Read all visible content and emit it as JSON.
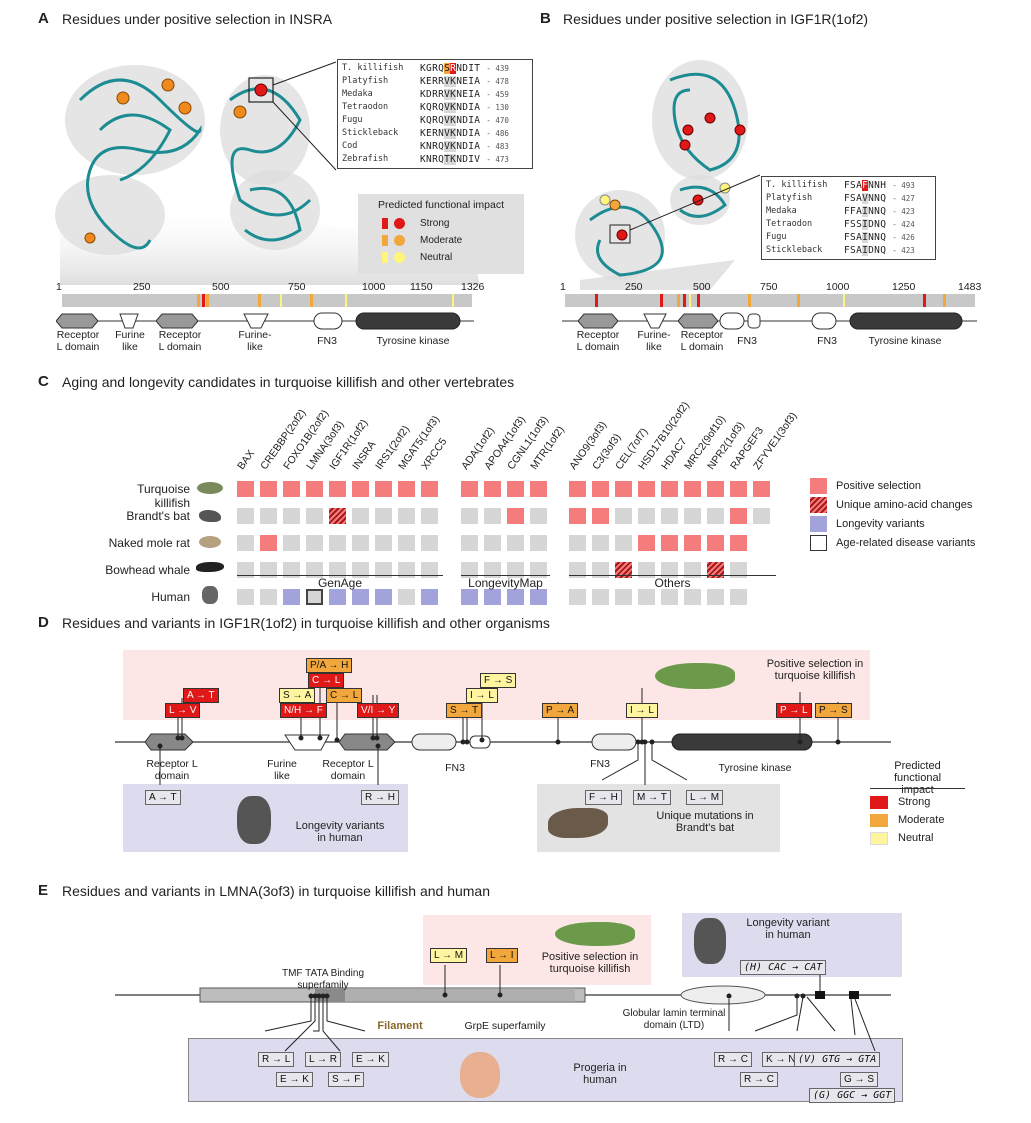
{
  "panelA": {
    "letter": "A",
    "title": "Residues under positive selection in INSRA",
    "axis_ticks": [
      "1",
      "250",
      "500",
      "750",
      "1000",
      "1150",
      "1326"
    ],
    "domains": [
      "Receptor\nL domain",
      "Furine\nlike",
      "Receptor\nL domain",
      "Furine-\nlike",
      "FN3",
      "Tyrosine kinase"
    ],
    "alignment": [
      {
        "species": "T. killifish",
        "seq": "KGRQSRNDIT",
        "num": "439"
      },
      {
        "species": "Platyfish",
        "seq": "KERRVKNEIA",
        "num": "478"
      },
      {
        "species": "Medaka",
        "seq": "KDRRVKNEIA",
        "num": "459"
      },
      {
        "species": "Tetraodon",
        "seq": "KQRQVKNDIA",
        "num": "130"
      },
      {
        "species": "Fugu",
        "seq": "KQRQVKNDIA",
        "num": "470"
      },
      {
        "species": "Stickleback",
        "seq": "KERNVKNDIA",
        "num": "486"
      },
      {
        "species": "Cod",
        "seq": "KNRQVKNDIA",
        "num": "483"
      },
      {
        "species": "Zebrafish",
        "seq": "KNRQTKNDIV",
        "num": "473"
      }
    ],
    "impact_legend": {
      "title": "Predicted functional impact",
      "items": [
        "Strong",
        "Moderate",
        "Neutral"
      ]
    }
  },
  "panelB": {
    "letter": "B",
    "title": "Residues under positive selection in IGF1R(1of2)",
    "axis_ticks": [
      "1",
      "250",
      "500",
      "750",
      "1000",
      "1250",
      "1483"
    ],
    "domains": [
      "Receptor\nL domain",
      "Furine-\nlike",
      "Receptor\nL domain",
      "FN3",
      "FN3",
      "Tyrosine kinase"
    ],
    "alignment": [
      {
        "species": "T. killifish",
        "seq": "FSAFNNH",
        "num": "493"
      },
      {
        "species": "Platyfish",
        "seq": "FSAVNNQ",
        "num": "427"
      },
      {
        "species": "Medaka",
        "seq": "FFAINNQ",
        "num": "423"
      },
      {
        "species": "Tetraodon",
        "seq": "FSSIDNQ",
        "num": "424"
      },
      {
        "species": "Fugu",
        "seq": "FSAINNQ",
        "num": "426"
      },
      {
        "species": "Stickleback",
        "seq": "FSAIDNQ",
        "num": "423"
      }
    ]
  },
  "panelC": {
    "letter": "C",
    "title": "Aging and longevity candidates in turquoise killifish and other vertebrates",
    "genes": [
      "BAX",
      "CREBBP(2of2)",
      "FOXO1B(2of2)",
      "LMNA(3of3)",
      "IGF1R(1of2)",
      "INSRA",
      "IRS1(2of2)",
      "MGAT5(1of3)",
      "XRCC5",
      "ADA(1of2)",
      "APOA4(1of3)",
      "CGNL1(1of3)",
      "MTR(1of2)",
      "ANO9(3of3)",
      "C3(3of3)",
      "CEL(7of7)",
      "HSD17B10(2of2)",
      "HDAC7",
      "MRC2(9of10)",
      "NPR2(1of3)",
      "RAPGEF3",
      "ZFYVE1(3of3)"
    ],
    "species": [
      "Turquoise killifish",
      "Brandt's bat",
      "Naked mole rat",
      "Bowhead whale",
      "Human"
    ],
    "grid": [
      "ppppppppp pppp ppppppppp",
      "ggggugggg ggpg ppgggggpg",
      "gpggggggg gggg gggppppp",
      "ggggggggg gggg ggugggug",
      "gglalllgl llll gggggggg"
    ],
    "groups": [
      "GenAge",
      "LongevityMap",
      "Others"
    ],
    "legend": [
      "Positive selection",
      "Unique amino-acid changes",
      "Longevity variants",
      "Age-related disease variants"
    ]
  },
  "panelD": {
    "letter": "D",
    "title": "Residues and variants in IGF1R(1of2) in turquoise killifish and other organisms",
    "selection_label": "Positive selection in\nturquoise killifish",
    "human_label": "Longevity variants\nin human",
    "bat_label": "Unique mutations in\nBrandt's bat",
    "domains": [
      "Receptor L\ndomain",
      "Furine\nlike",
      "Receptor L\ndomain",
      "FN3",
      "FN3",
      "Tyrosine kinase"
    ],
    "mutations": [
      {
        "t": "A → T",
        "k": "strong"
      },
      {
        "t": "L → V",
        "k": "strong"
      },
      {
        "t": "P/A → H",
        "k": "moderate"
      },
      {
        "t": "S → A",
        "k": "neutral"
      },
      {
        "t": "C → L",
        "k": "strong"
      },
      {
        "t": "C → L",
        "k": "moderate"
      },
      {
        "t": "N/H → F",
        "k": "strong"
      },
      {
        "t": "V/I → Y",
        "k": "strong"
      },
      {
        "t": "F → S",
        "k": "neutral"
      },
      {
        "t": "I → L",
        "k": "neutral"
      },
      {
        "t": "S → T",
        "k": "moderate"
      },
      {
        "t": "P → A",
        "k": "moderate"
      },
      {
        "t": "I → L",
        "k": "neutral"
      },
      {
        "t": "P → L",
        "k": "strong"
      },
      {
        "t": "P → S",
        "k": "moderate"
      }
    ],
    "human_vars": [
      "A → T",
      "R → H"
    ],
    "bat_vars": [
      "F → H",
      "M → T",
      "L → M"
    ],
    "impact_legend": {
      "title": "Predicted functional\nimpact",
      "items": [
        "Strong",
        "Moderate",
        "Neutral"
      ]
    }
  },
  "panelE": {
    "letter": "E",
    "title": "Residues and variants in LMNA(3of3) in turquoise killifish and human",
    "selection_label": "Positive selection in\nturquoise killifish",
    "longevity_label": "Longevity variant\nin human",
    "progeria_label": "Progeria in\nhuman",
    "tmf_label": "TMF TATA Binding\nsuperfamily",
    "filament_label": "Filament",
    "grpe_label": "GrpE superfamily",
    "ltd_label": "Globular lamin terminal\ndomain (LTD)",
    "selection_muts": [
      "L → M",
      "L → I"
    ],
    "longevity_var": "(H) CAC → CAT",
    "progeria_vars": [
      "R → L",
      "E → K",
      "L → R",
      "S → F",
      "E → K",
      "R → C",
      "R → C",
      "K → N",
      "(V) GTG → GTA",
      "G → S",
      "(G) GGC → GGT"
    ]
  },
  "colors": {
    "strong": "#e01818",
    "moderate": "#f2a73c",
    "neutral": "#fff5a0",
    "positive": "#f47c7c",
    "longevity": "#a3a3dc",
    "pinkbox": "#fde6e6",
    "lavbox": "#dcdcee",
    "greybox": "#e3e3e3"
  }
}
